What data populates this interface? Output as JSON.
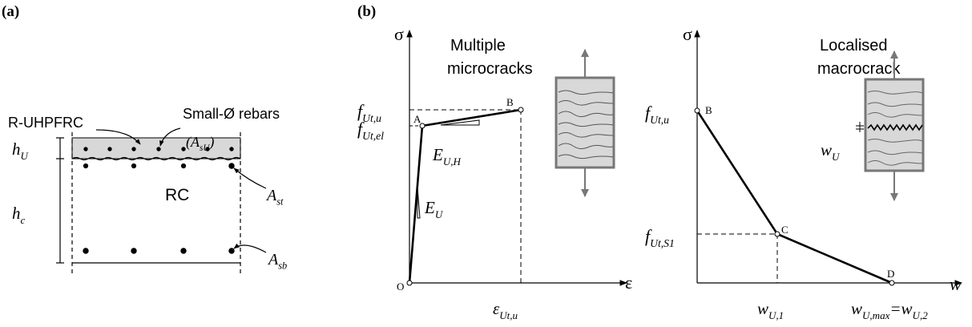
{
  "panel_a": {
    "tag": "(a)",
    "layer": "R-UHPFRC",
    "rebars": "Small-Ø rebars",
    "rebar_area": [
      {
        "text": "(A"
      },
      {
        "sub": "sU"
      },
      {
        "text": ")"
      }
    ],
    "h_u": [
      {
        "text": "h"
      },
      {
        "sub": "U"
      }
    ],
    "h_c": [
      {
        "text": "h"
      },
      {
        "sub": "c"
      }
    ],
    "core": "RC",
    "a_st": [
      {
        "text": "A"
      },
      {
        "sub": "st"
      }
    ],
    "a_sb": [
      {
        "text": "A"
      },
      {
        "sub": "sb"
      }
    ]
  },
  "panel_b": {
    "tag": "(b)",
    "hardening": {
      "title": [
        "Multiple",
        "microcracks"
      ],
      "y_axis": "σ",
      "x_axis": "ε",
      "f_u": [
        {
          "text": "f"
        },
        {
          "sub": "Ut,u"
        }
      ],
      "f_el": [
        {
          "text": "f"
        },
        {
          "sub": "Ut,el"
        }
      ],
      "e_h": [
        {
          "text": "E"
        },
        {
          "sub": "U,H"
        }
      ],
      "e_u": [
        {
          "text": "E"
        },
        {
          "sub": "U"
        }
      ],
      "eps_u": [
        {
          "text": "ε"
        },
        {
          "sub": "Ut,u"
        }
      ],
      "points": [
        "O",
        "A",
        "B"
      ]
    },
    "softening": {
      "title": [
        "Localised",
        "macrocrack"
      ],
      "y_axis": "σ",
      "x_axis": "w",
      "f_u": [
        {
          "text": "f"
        },
        {
          "sub": "Ut,u"
        }
      ],
      "f_s1": [
        {
          "text": "f"
        },
        {
          "sub": "Ut,S1"
        }
      ],
      "w_u": [
        {
          "text": "w"
        },
        {
          "sub": "U"
        }
      ],
      "w_1": [
        {
          "text": "w"
        },
        {
          "sub": "U,1"
        }
      ],
      "w_max": [
        {
          "text": "w"
        },
        {
          "sub": "U,max"
        },
        {
          "text": "=w"
        },
        {
          "sub": "U,2"
        }
      ],
      "points": [
        "B",
        "C",
        "D"
      ]
    }
  }
}
